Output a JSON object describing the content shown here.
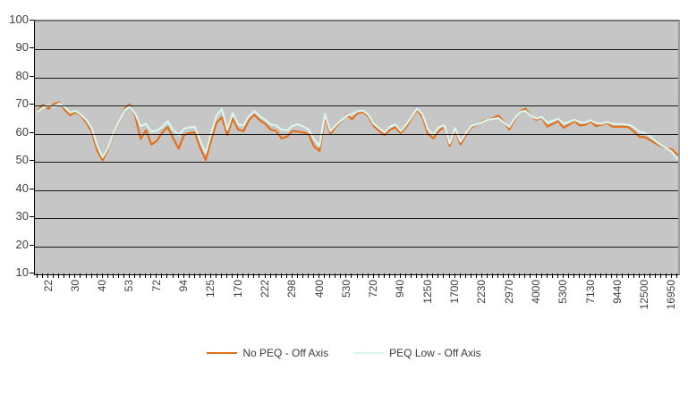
{
  "colors": {
    "background": "#ffffff",
    "plot_background": "#c6c6c6",
    "gridline": "#1a1a1a",
    "axis": "#000000",
    "label_text": "#3f3f3f",
    "series_no_peq": "#e2711d",
    "series_peq_low": "#d9f5f0"
  },
  "legend": {
    "position": "bottom-center",
    "border": "none"
  },
  "chart_data": {
    "type": "line",
    "title": "",
    "xlabel": "",
    "ylabel": "",
    "grid": "horizontal",
    "legend_position": "bottom",
    "plot_area_style": "gray-fill-black-gridlines",
    "y_axis": {
      "min": 10,
      "max": 100,
      "step": 10,
      "tick_labels": [
        "100",
        "90",
        "80",
        "70",
        "60",
        "50",
        "40",
        "30",
        "20",
        "10"
      ]
    },
    "x_axis": {
      "scale": "log-frequency-categories",
      "points_per_series": 119,
      "label_every_n_points": 5,
      "label_rotation_deg": -90,
      "labels_shown": [
        "22",
        "30",
        "40",
        "53",
        "72",
        "94",
        "125",
        "170",
        "222",
        "298",
        "400",
        "530",
        "720",
        "940",
        "1250",
        "1700",
        "2230",
        "2970",
        "4000",
        "5300",
        "7130",
        "9440",
        "12500",
        "16950"
      ]
    },
    "series": [
      {
        "name": "No PEQ - Off Axis",
        "color": "#e2711d",
        "values": [
          68.3,
          70.3,
          68.9,
          70.6,
          71.2,
          68.6,
          66.6,
          67.7,
          66.5,
          64.0,
          60.8,
          54.0,
          50.6,
          54.5,
          60.0,
          64.0,
          68.8,
          70.5,
          66.5,
          58.2,
          61.3,
          56.2,
          57.5,
          60.5,
          62.4,
          58.5,
          54.7,
          59.5,
          60.3,
          60.5,
          55.0,
          50.7,
          57.5,
          64.0,
          65.9,
          59.5,
          65.5,
          61.5,
          61.0,
          65.0,
          66.8,
          64.8,
          63.6,
          61.5,
          61.0,
          58.4,
          59.0,
          61.0,
          60.8,
          60.5,
          59.8,
          55.5,
          53.9,
          66.0,
          60.0,
          62.5,
          64.5,
          66.8,
          65.2,
          67.3,
          67.8,
          66.2,
          62.8,
          61.0,
          59.5,
          61.5,
          62.3,
          60.2,
          62.5,
          65.5,
          68.5,
          66.0,
          60.0,
          58.4,
          61.0,
          62.5,
          55.7,
          61.5,
          56.2,
          59.5,
          62.3,
          63.2,
          64.5,
          65.0,
          65.6,
          66.5,
          64.2,
          61.6,
          65.0,
          68.0,
          68.9,
          66.3,
          65.0,
          65.8,
          62.6,
          63.5,
          64.5,
          62.2,
          63.2,
          64.5,
          63.0,
          63.2,
          64.4,
          62.8,
          63.2,
          63.9,
          62.6,
          62.5,
          62.6,
          62.4,
          60.8,
          59.0,
          58.8,
          57.8,
          56.6,
          55.6,
          54.9,
          54.5,
          52.6
        ]
      },
      {
        "name": "PEQ Low - Off Axis",
        "color": "#d9f5f0",
        "values": [
          67.9,
          69.3,
          70.2,
          69.6,
          70.8,
          69.5,
          67.6,
          68.2,
          66.8,
          64.9,
          62.0,
          55.8,
          51.7,
          55.0,
          60.3,
          64.3,
          68.3,
          69.8,
          67.2,
          62.8,
          63.5,
          60.7,
          61.2,
          62.5,
          64.4,
          61.5,
          59.5,
          61.8,
          62.3,
          62.5,
          57.5,
          53.2,
          60.0,
          66.5,
          68.8,
          61.5,
          67.4,
          63.3,
          63.0,
          66.3,
          68.1,
          66.2,
          65.0,
          63.3,
          63.0,
          61.5,
          61.3,
          62.8,
          63.4,
          62.6,
          61.5,
          58.0,
          55.7,
          67.0,
          61.0,
          63.0,
          64.8,
          66.5,
          67.0,
          68.0,
          68.3,
          66.8,
          63.6,
          62.0,
          60.5,
          62.5,
          63.4,
          61.0,
          63.3,
          66.0,
          69.0,
          67.0,
          61.5,
          59.8,
          62.3,
          63.0,
          56.6,
          62.0,
          57.2,
          60.2,
          62.8,
          63.4,
          64.2,
          65.0,
          65.3,
          65.6,
          64.0,
          62.5,
          65.5,
          67.8,
          68.2,
          66.3,
          65.5,
          66.0,
          64.0,
          64.6,
          65.4,
          63.6,
          64.2,
          65.0,
          64.2,
          64.0,
          64.8,
          63.8,
          63.6,
          64.2,
          63.6,
          63.5,
          63.4,
          63.2,
          62.4,
          60.8,
          60.2,
          59.2,
          57.4,
          56.0,
          54.9,
          53.6,
          51.0
        ]
      }
    ]
  }
}
